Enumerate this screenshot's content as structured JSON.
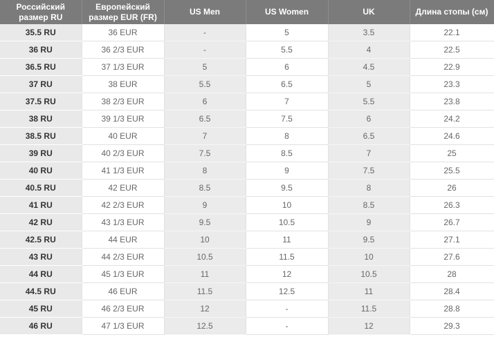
{
  "table": {
    "header": [
      "Российский размер RU",
      "Европейский размер EUR (FR)",
      "US Men",
      "US Women",
      "UK",
      "Длина стопы (см)"
    ],
    "rows": [
      [
        "35.5 RU",
        "36 EUR",
        "-",
        "5",
        "3.5",
        "22.1"
      ],
      [
        "36 RU",
        "36 2/3 EUR",
        "-",
        "5.5",
        "4",
        "22.5"
      ],
      [
        "36.5 RU",
        "37 1/3 EUR",
        "5",
        "6",
        "4.5",
        "22.9"
      ],
      [
        "37 RU",
        "38 EUR",
        "5.5",
        "6.5",
        "5",
        "23.3"
      ],
      [
        "37.5 RU",
        "38 2/3 EUR",
        "6",
        "7",
        "5.5",
        "23.8"
      ],
      [
        "38 RU",
        "39 1/3 EUR",
        "6.5",
        "7.5",
        "6",
        "24.2"
      ],
      [
        "38.5 RU",
        "40 EUR",
        "7",
        "8",
        "6.5",
        "24.6"
      ],
      [
        "39 RU",
        "40 2/3 EUR",
        "7.5",
        "8.5",
        "7",
        "25"
      ],
      [
        "40 RU",
        "41 1/3 EUR",
        "8",
        "9",
        "7.5",
        "25.5"
      ],
      [
        "40.5 RU",
        "42 EUR",
        "8.5",
        "9.5",
        "8",
        "26"
      ],
      [
        "41 RU",
        "42 2/3 EUR",
        "9",
        "10",
        "8.5",
        "26.3"
      ],
      [
        "42 RU",
        "43 1/3 EUR",
        "9.5",
        "10.5",
        "9",
        "26.7"
      ],
      [
        "42.5 RU",
        "44 EUR",
        "10",
        "11",
        "9.5",
        "27.1"
      ],
      [
        "43 RU",
        "44 2/3 EUR",
        "10.5",
        "11.5",
        "10",
        "27.6"
      ],
      [
        "44 RU",
        "45 1/3 EUR",
        "11",
        "12",
        "10.5",
        "28"
      ],
      [
        "44.5 RU",
        "46 EUR",
        "11.5",
        "12.5",
        "11",
        "28.4"
      ],
      [
        "45 RU",
        "46 2/3 EUR",
        "12",
        "-",
        "11.5",
        "28.8"
      ],
      [
        "46 RU",
        "47 1/3 EUR",
        "12.5",
        "-",
        "12",
        "29.3"
      ]
    ]
  }
}
